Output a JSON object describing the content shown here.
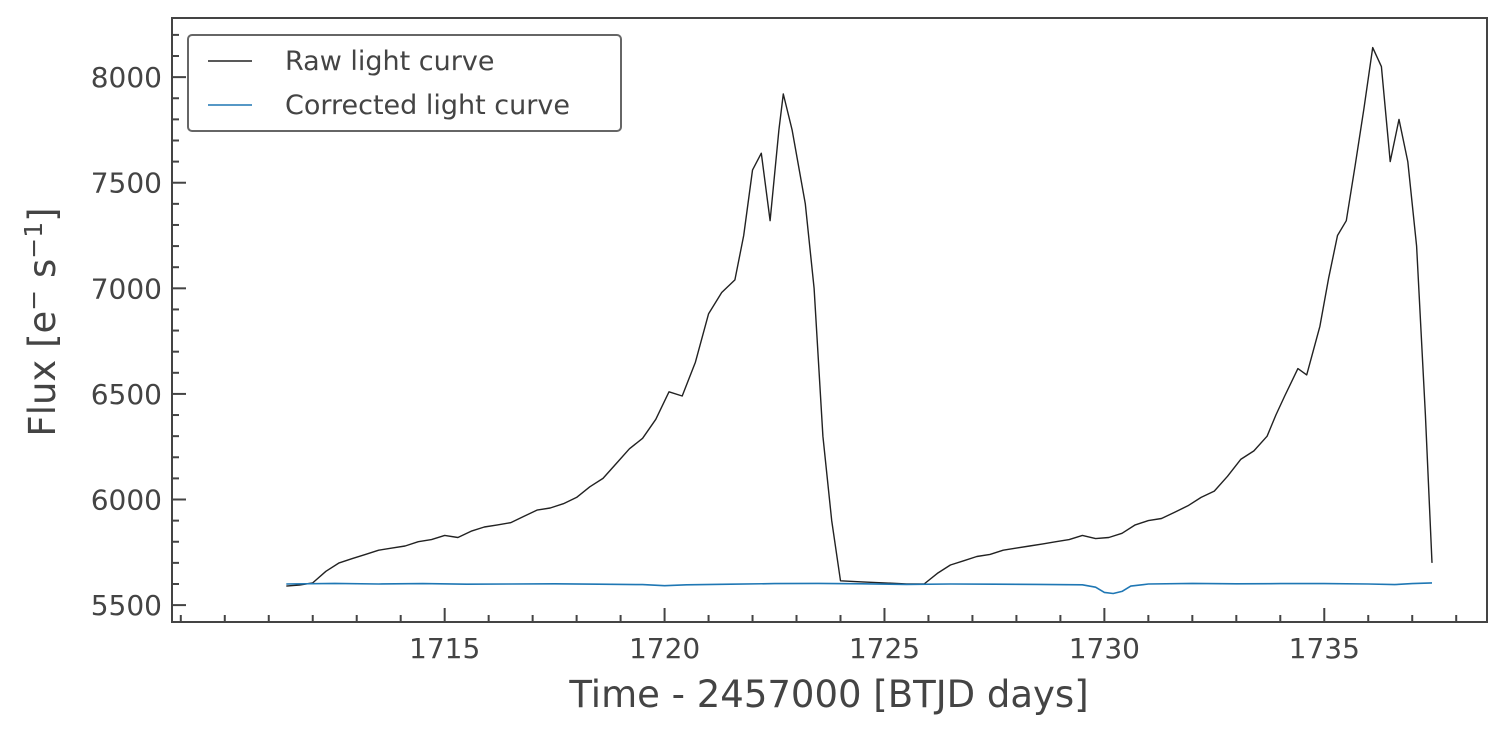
{
  "chart_data": {
    "type": "line",
    "xlabel": "Time - 2457000 [BTJD days]",
    "ylabel_main": "Flux [e",
    "ylabel_sup1": "−",
    "ylabel_mid": " s",
    "ylabel_sup2": "−1",
    "ylabel_end": "]",
    "xlim": [
      1708.8,
      1738.7
    ],
    "ylim": [
      5420,
      8280
    ],
    "xticks": [
      1715,
      1720,
      1725,
      1730,
      1735
    ],
    "xtick_labels": [
      "1715",
      "1720",
      "1725",
      "1730",
      "1735"
    ],
    "xminor_step": 1,
    "yticks": [
      5500,
      6000,
      6500,
      7000,
      7500,
      8000
    ],
    "ytick_labels": [
      "5500",
      "6000",
      "6500",
      "7000",
      "7500",
      "8000"
    ],
    "yminor_step": 100,
    "grid": false,
    "legend_position": "top-left",
    "series": [
      {
        "name": "Raw light curve",
        "color": "#222222",
        "x": [
          1711.4,
          1711.7,
          1712.0,
          1712.3,
          1712.6,
          1712.9,
          1713.2,
          1713.5,
          1713.8,
          1714.1,
          1714.4,
          1714.7,
          1715.0,
          1715.3,
          1715.6,
          1715.9,
          1716.2,
          1716.5,
          1716.8,
          1717.1,
          1717.4,
          1717.7,
          1718.0,
          1718.3,
          1718.6,
          1718.9,
          1719.2,
          1719.5,
          1719.8,
          1720.1,
          1720.4,
          1720.7,
          1721.0,
          1721.3,
          1721.6,
          1721.8,
          1722.0,
          1722.2,
          1722.4,
          1722.6,
          1722.7,
          1722.9,
          1723.2,
          1723.4,
          1723.6,
          1723.8,
          1724.0,
          1724.5,
          1725.0,
          1725.5,
          1725.9,
          1726.2,
          1726.5,
          1726.8,
          1727.1,
          1727.4,
          1727.7,
          1728.0,
          1728.3,
          1728.6,
          1728.9,
          1729.2,
          1729.5,
          1729.8,
          1730.1,
          1730.4,
          1730.7,
          1731.0,
          1731.3,
          1731.6,
          1731.9,
          1732.2,
          1732.5,
          1732.8,
          1733.1,
          1733.4,
          1733.7,
          1733.9,
          1734.1,
          1734.4,
          1734.6,
          1734.9,
          1735.1,
          1735.3,
          1735.5,
          1735.7,
          1735.9,
          1736.1,
          1736.3,
          1736.5,
          1736.7,
          1736.9,
          1737.1,
          1737.3,
          1737.45
        ],
        "y": [
          5590,
          5595,
          5605,
          5660,
          5700,
          5720,
          5740,
          5760,
          5770,
          5780,
          5800,
          5810,
          5830,
          5820,
          5850,
          5870,
          5880,
          5890,
          5920,
          5950,
          5960,
          5980,
          6010,
          6060,
          6100,
          6170,
          6240,
          6290,
          6380,
          6510,
          6490,
          6650,
          6880,
          6980,
          7040,
          7250,
          7560,
          7640,
          7320,
          7750,
          7920,
          7750,
          7400,
          7000,
          6300,
          5900,
          5615,
          5610,
          5605,
          5600,
          5600,
          5650,
          5690,
          5710,
          5730,
          5740,
          5760,
          5770,
          5780,
          5790,
          5800,
          5810,
          5830,
          5815,
          5820,
          5840,
          5880,
          5900,
          5910,
          5940,
          5970,
          6010,
          6040,
          6110,
          6190,
          6230,
          6300,
          6400,
          6490,
          6620,
          6590,
          6820,
          7050,
          7250,
          7320,
          7580,
          7850,
          8140,
          8050,
          7600,
          7800,
          7600,
          7200,
          6400,
          5700
        ]
      },
      {
        "name": "Corrected light curve",
        "color": "#1f77b4",
        "x": [
          1711.4,
          1712.5,
          1713.5,
          1714.5,
          1715.5,
          1716.5,
          1717.5,
          1718.5,
          1719.5,
          1720.0,
          1720.5,
          1721.5,
          1722.5,
          1723.5,
          1724.5,
          1725.5,
          1726.5,
          1727.5,
          1728.5,
          1729.5,
          1729.8,
          1730.0,
          1730.2,
          1730.4,
          1730.6,
          1731.0,
          1732.0,
          1733.0,
          1734.0,
          1735.0,
          1736.0,
          1736.6,
          1737.0,
          1737.45
        ],
        "y": [
          5600,
          5603,
          5600,
          5602,
          5599,
          5600,
          5601,
          5599,
          5597,
          5592,
          5596,
          5599,
          5602,
          5603,
          5601,
          5598,
          5600,
          5599,
          5598,
          5596,
          5585,
          5560,
          5555,
          5565,
          5590,
          5600,
          5603,
          5601,
          5602,
          5602,
          5600,
          5597,
          5602,
          5605
        ]
      }
    ]
  }
}
